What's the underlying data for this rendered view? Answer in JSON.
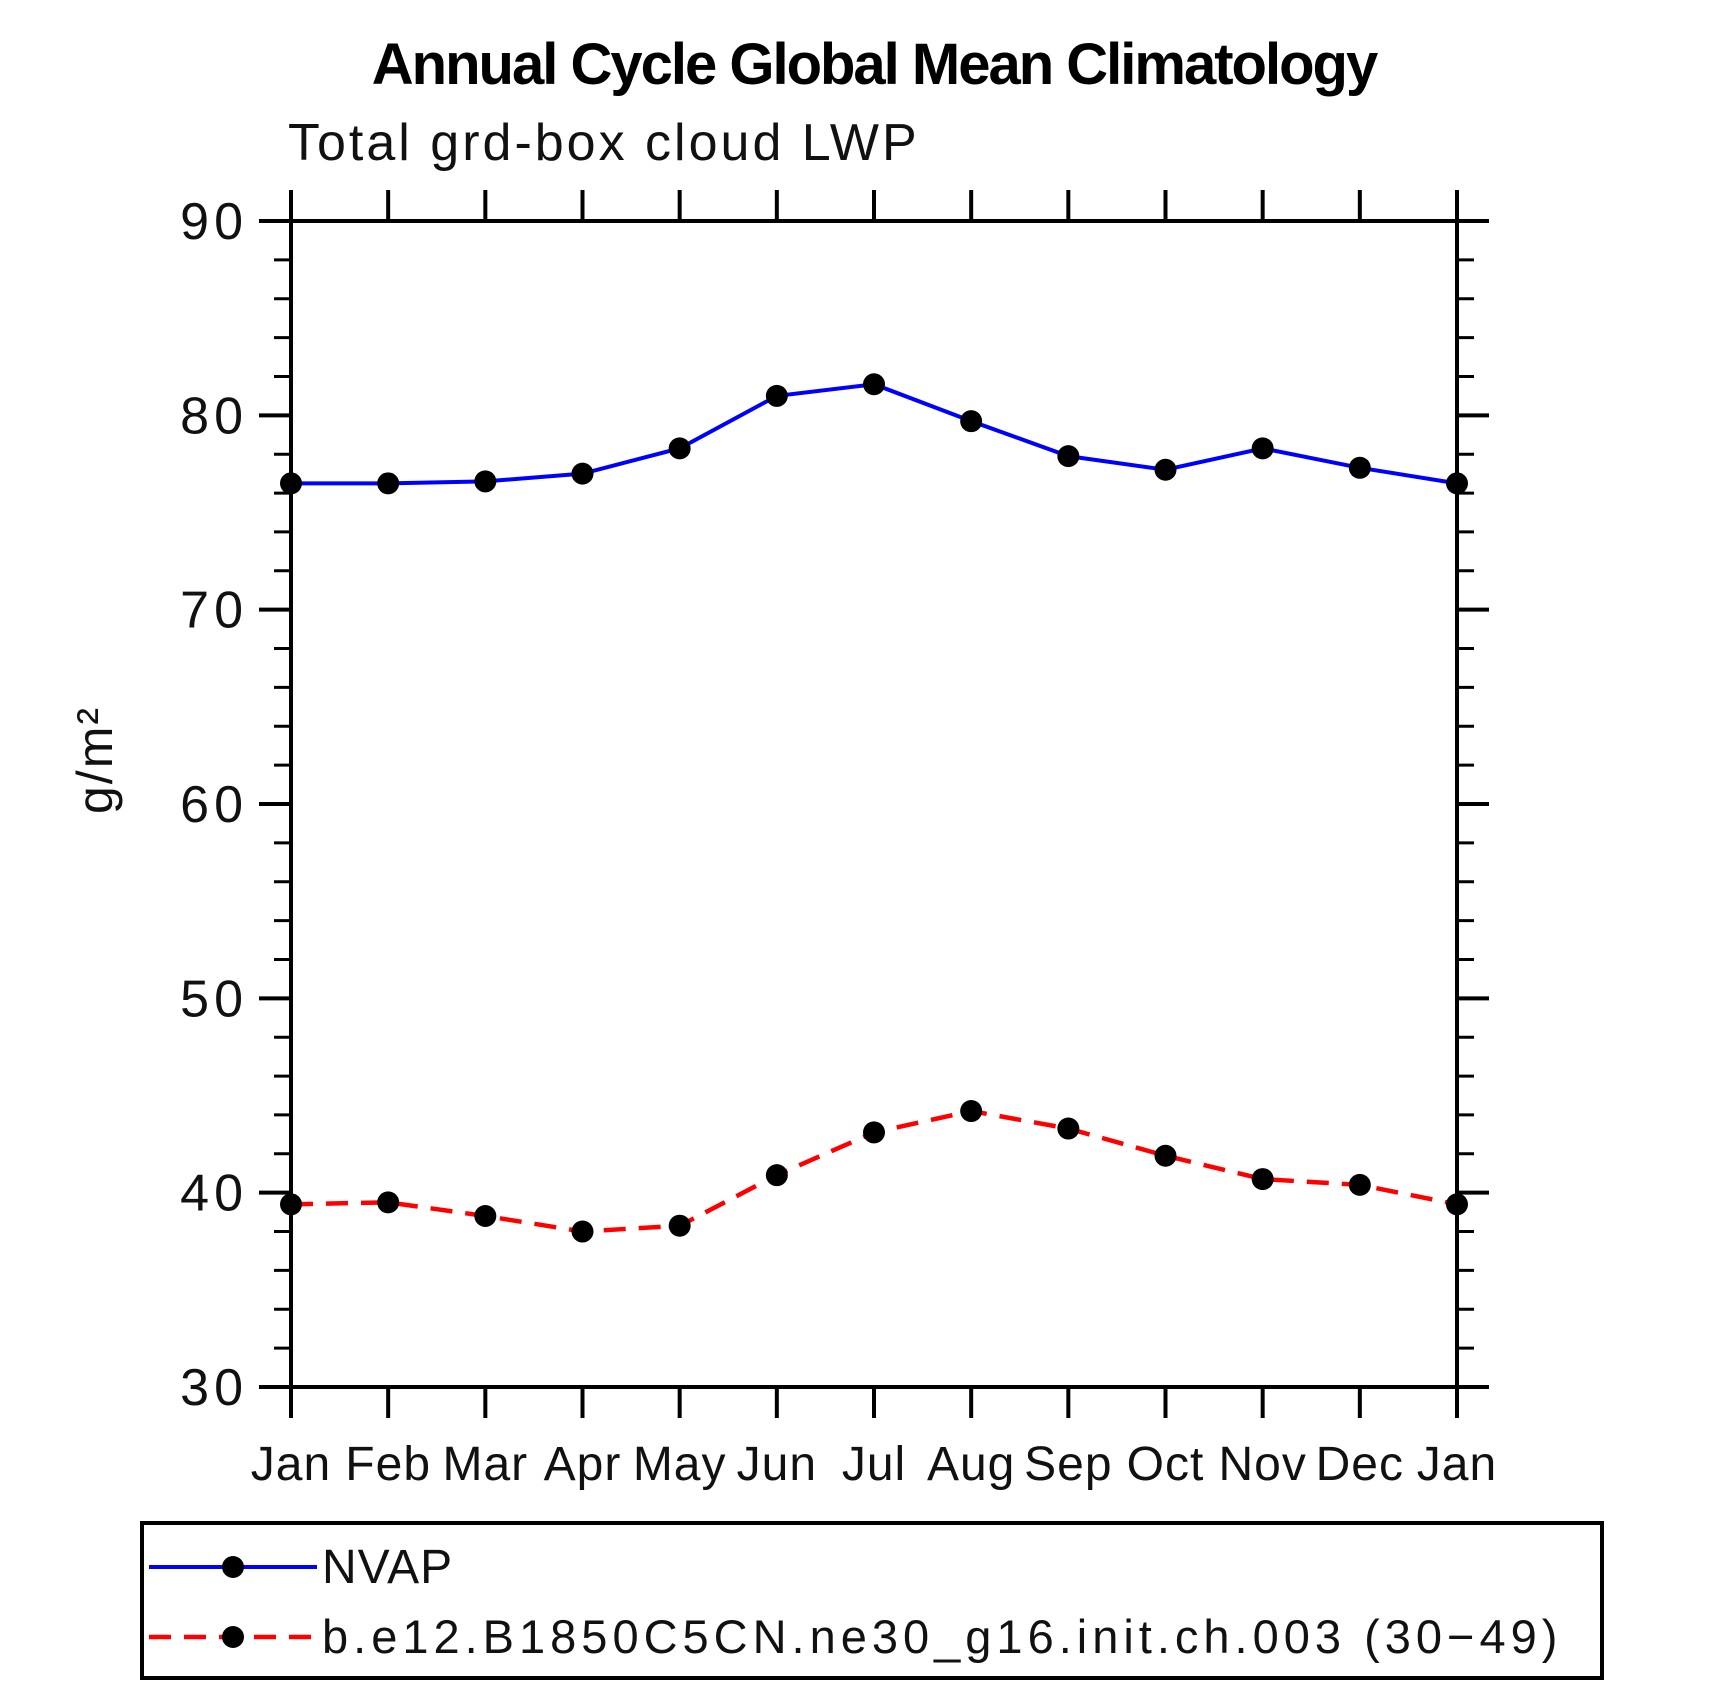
{
  "chart_data": {
    "type": "line",
    "title": "Annual Cycle Global Mean Climatology",
    "subtitle": "Total grd-box cloud LWP",
    "ylabel": "g/m²",
    "ylim": [
      30,
      90
    ],
    "y_major_ticks": [
      90,
      80,
      70,
      60,
      50,
      40,
      30
    ],
    "y_minor_step": 2,
    "grid": false,
    "legend_position": "bottom-left",
    "categories": [
      "Jan",
      "Feb",
      "Mar",
      "Apr",
      "May",
      "Jun",
      "Jul",
      "Aug",
      "Sep",
      "Oct",
      "Nov",
      "Dec",
      "Jan"
    ],
    "series": [
      {
        "name": "NVAP",
        "color": "#0000ff",
        "line_style": "solid",
        "marker": "filled-circle",
        "marker_color": "#000000",
        "values": [
          76.5,
          76.5,
          76.6,
          77.0,
          78.3,
          81.0,
          81.6,
          79.7,
          77.9,
          77.2,
          78.3,
          77.3,
          76.5
        ]
      },
      {
        "name": "b.e12.B1850C5CN.ne30_g16.init.ch.003 (30−49)",
        "color": "#ff0000",
        "line_style": "dashed",
        "marker": "filled-circle",
        "marker_color": "#000000",
        "values": [
          39.4,
          39.5,
          38.8,
          38.0,
          38.3,
          40.9,
          43.1,
          44.2,
          43.3,
          41.9,
          40.7,
          40.4,
          39.4
        ]
      }
    ]
  }
}
